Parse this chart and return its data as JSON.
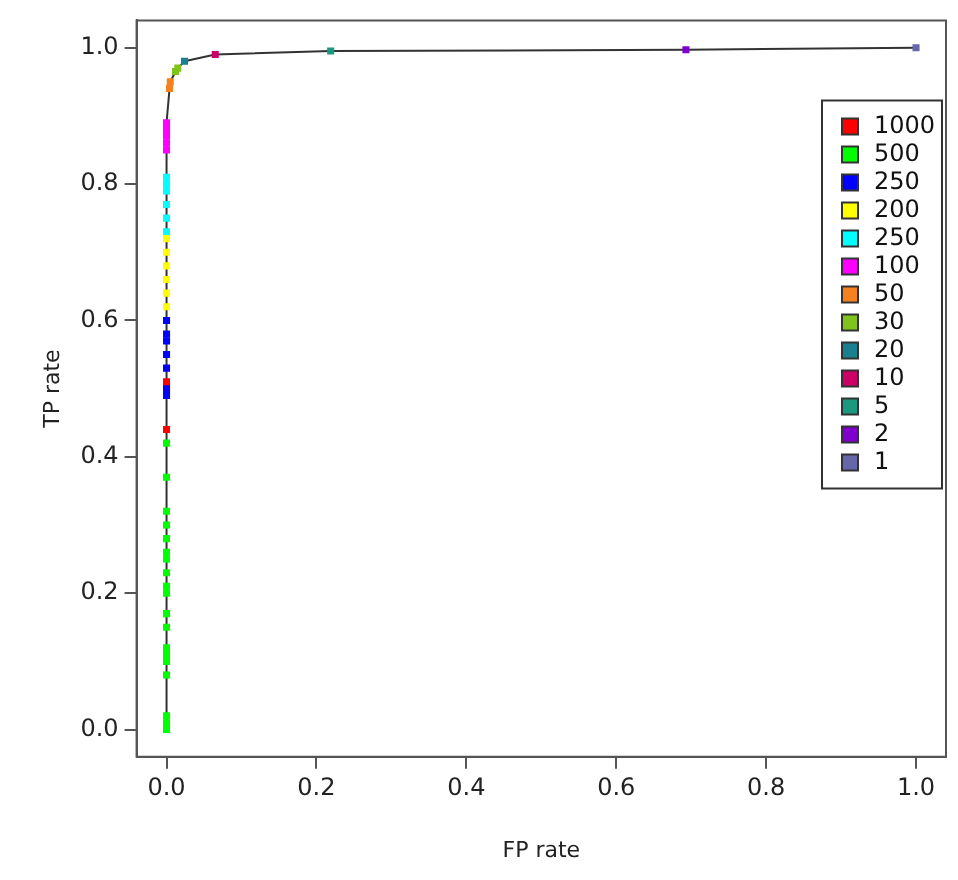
{
  "chart_data": {
    "type": "scatter",
    "xlabel": "FP rate",
    "ylabel": "TP rate",
    "xlim": [
      -0.04,
      1.04
    ],
    "ylim": [
      -0.04,
      1.04
    ],
    "xticks": [
      {
        "value": 0,
        "label": "0.0"
      },
      {
        "value": 0.2,
        "label": "0.2"
      },
      {
        "value": 0.4,
        "label": "0.4"
      },
      {
        "value": 0.6,
        "label": "0.6"
      },
      {
        "value": 0.8,
        "label": "0.8"
      },
      {
        "value": 1,
        "label": "1.0"
      }
    ],
    "yticks": [
      {
        "value": 0,
        "label": "0.0"
      },
      {
        "value": 0.2,
        "label": "0.2"
      },
      {
        "value": 0.4,
        "label": "0.4"
      },
      {
        "value": 0.6,
        "label": "0.6"
      },
      {
        "value": 0.8,
        "label": "0.8"
      },
      {
        "value": 1,
        "label": "1.0"
      }
    ],
    "grid": false,
    "legend": "top right",
    "marker": "square",
    "line_style": "solid",
    "series": [
      {
        "type": "line",
        "marker": "none",
        "color": "#333333",
        "x": [
          0,
          0,
          0.004,
          0.005,
          0.012,
          0.015,
          0.024,
          0.065,
          0.219,
          0.693,
          1
        ],
        "values": [
          0,
          0.89,
          0.94,
          0.95,
          0.965,
          0.97,
          0.98,
          0.99,
          0.995,
          0.997,
          1
        ]
      },
      {
        "name": "1000",
        "color": "#ff0000",
        "x": [
          0,
          0
        ],
        "values": [
          0.44,
          0.51
        ]
      },
      {
        "name": "500",
        "color": "#00ff00",
        "x": [
          0,
          0,
          0,
          0,
          0,
          0,
          0,
          0,
          0,
          0,
          0,
          0,
          0,
          0,
          0,
          0,
          0,
          0,
          0
        ],
        "values": [
          0.42,
          0.37,
          0.32,
          0.3,
          0.28,
          0.26,
          0.25,
          0.23,
          0.21,
          0.2,
          0.17,
          0.15,
          0.12,
          0.11,
          0.1,
          0.08,
          0.02,
          0.01,
          0
        ]
      },
      {
        "name": "250",
        "color": "#0000ff",
        "x": [
          0,
          0,
          0,
          0,
          0,
          0,
          0
        ],
        "values": [
          0.49,
          0.5,
          0.53,
          0.55,
          0.57,
          0.58,
          0.6
        ]
      },
      {
        "name": "200",
        "color": "#ffff00",
        "x": [
          0,
          0,
          0,
          0,
          0,
          0
        ],
        "values": [
          0.62,
          0.64,
          0.66,
          0.68,
          0.7,
          0.72
        ]
      },
      {
        "name": "250",
        "color": "#00ffff",
        "x": [
          0,
          0,
          0,
          0,
          0,
          0
        ],
        "values": [
          0.73,
          0.75,
          0.77,
          0.79,
          0.81,
          0.8
        ]
      },
      {
        "name": "100",
        "color": "#ff00ff",
        "x": [
          0,
          0,
          0,
          0,
          0
        ],
        "values": [
          0.85,
          0.86,
          0.87,
          0.88,
          0.89
        ]
      },
      {
        "name": "50",
        "color": "#f5821f",
        "x": [
          0.004,
          0.005
        ],
        "values": [
          0.94,
          0.95
        ]
      },
      {
        "name": "30",
        "color": "#80c31c",
        "x": [
          0.012,
          0.015
        ],
        "values": [
          0.965,
          0.97
        ]
      },
      {
        "name": "20",
        "color": "#1a7f8f",
        "x": [
          0.024
        ],
        "values": [
          0.98
        ]
      },
      {
        "name": "10",
        "color": "#cc0066",
        "x": [
          0.065
        ],
        "values": [
          0.99
        ]
      },
      {
        "name": "5",
        "color": "#1a9980",
        "x": [
          0.219
        ],
        "values": [
          0.995
        ]
      },
      {
        "name": "2",
        "color": "#7f00cc",
        "x": [
          0.693
        ],
        "values": [
          0.997
        ]
      },
      {
        "name": "1",
        "color": "#6666aa",
        "x": [
          1
        ],
        "values": [
          1
        ]
      }
    ]
  }
}
